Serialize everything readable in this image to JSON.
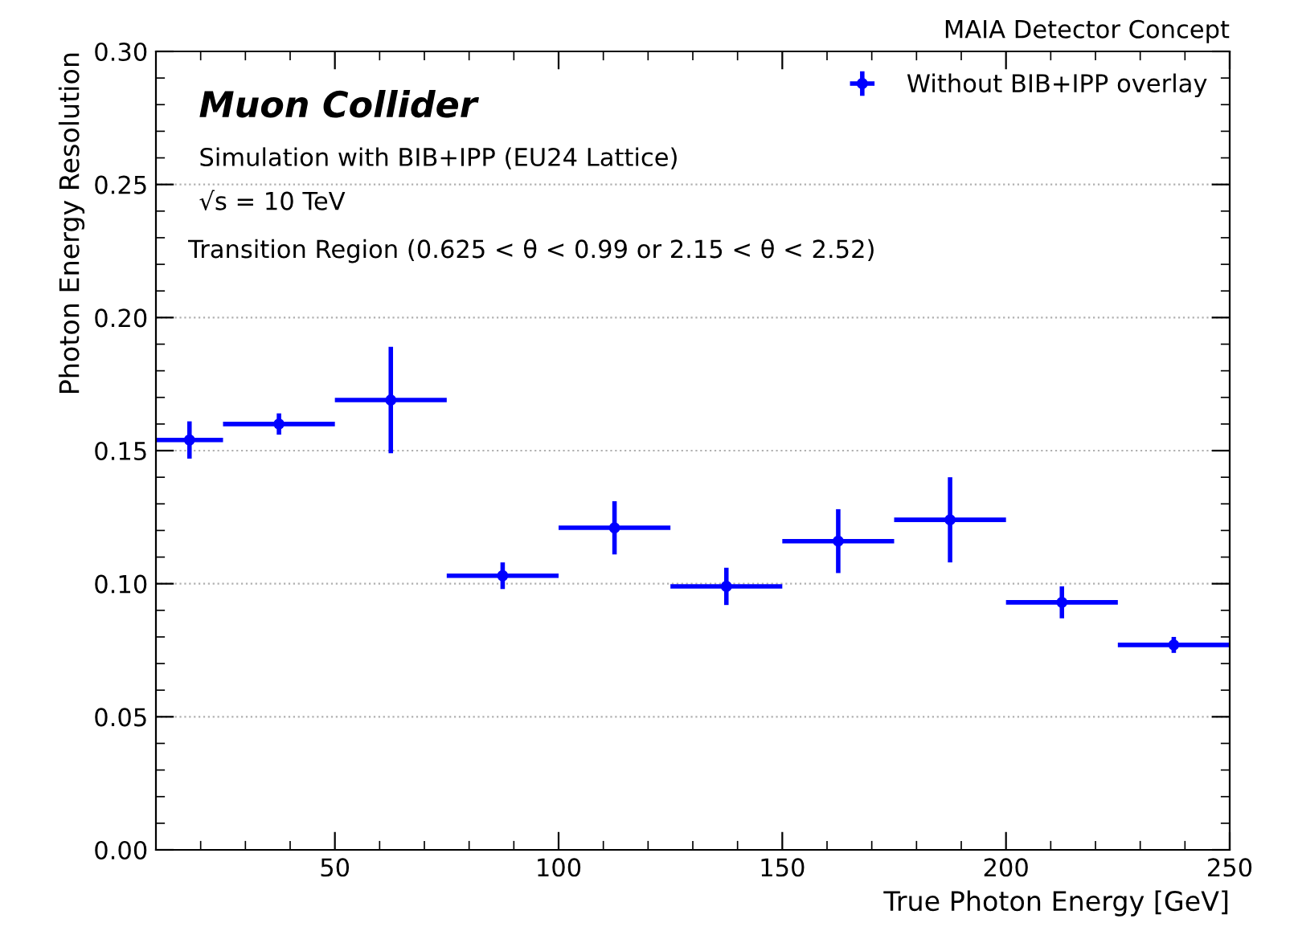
{
  "chart_data": {
    "type": "scatter",
    "title": "MAIA Detector Concept",
    "xlabel": "True Photon Energy [GeV]",
    "ylabel": "Photon Energy Resolution",
    "annotations": [
      "Muon Collider",
      "Simulation with BIB+IPP (EU24 Lattice)",
      "√s = 10 TeV",
      "Transition Region (0.625 < θ < 0.99 or 2.15 < θ < 2.52)"
    ],
    "x": [
      17.5,
      37.5,
      62.5,
      87.5,
      112.5,
      137.5,
      162.5,
      187.5,
      212.5,
      237.5
    ],
    "series": [
      {
        "name": "Without BIB+IPP overlay",
        "color": "#0000ff",
        "values": [
          0.154,
          0.16,
          0.169,
          0.103,
          0.121,
          0.099,
          0.116,
          0.124,
          0.093,
          0.077
        ],
        "errors": [
          0.007,
          0.004,
          0.02,
          0.005,
          0.01,
          0.007,
          0.012,
          0.016,
          0.006,
          0.003
        ],
        "xerrors": [
          7.5,
          12.5,
          12.5,
          12.5,
          12.5,
          12.5,
          12.5,
          12.5,
          12.5,
          12.5
        ]
      }
    ],
    "xlim": [
      10,
      250
    ],
    "xticks": [
      50,
      100,
      150,
      200,
      250
    ],
    "ylim": [
      0,
      0.3
    ],
    "yticks": [
      {
        "value": 0,
        "label": "0.00"
      },
      {
        "value": 0.05,
        "label": "0.05"
      },
      {
        "value": 0.1,
        "label": "0.10"
      },
      {
        "value": 0.15,
        "label": "0.15"
      },
      {
        "value": 0.2,
        "label": "0.20"
      },
      {
        "value": 0.25,
        "label": "0.25"
      },
      {
        "value": 0.3,
        "label": "0.30"
      }
    ],
    "grid": "y",
    "legend": "top right",
    "marker": "circle"
  }
}
